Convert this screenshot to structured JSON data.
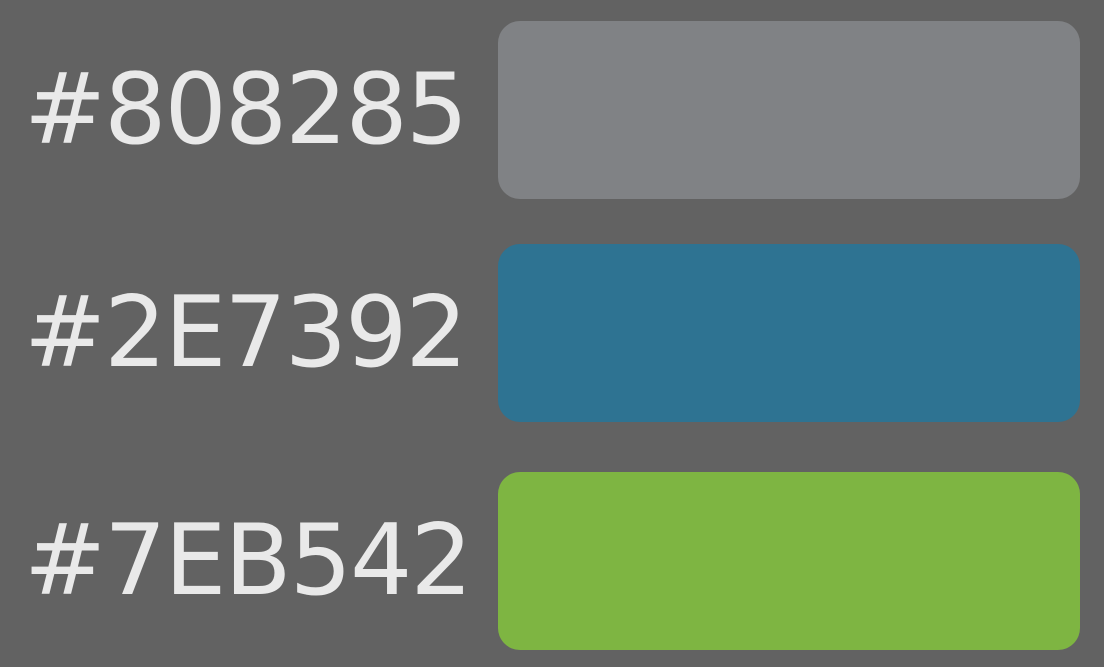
{
  "swatches": [
    {
      "label": "#808285",
      "color": "#808285"
    },
    {
      "label": "#2E7392",
      "color": "#2E7392"
    },
    {
      "label": "#7EB542",
      "color": "#7EB542"
    }
  ]
}
